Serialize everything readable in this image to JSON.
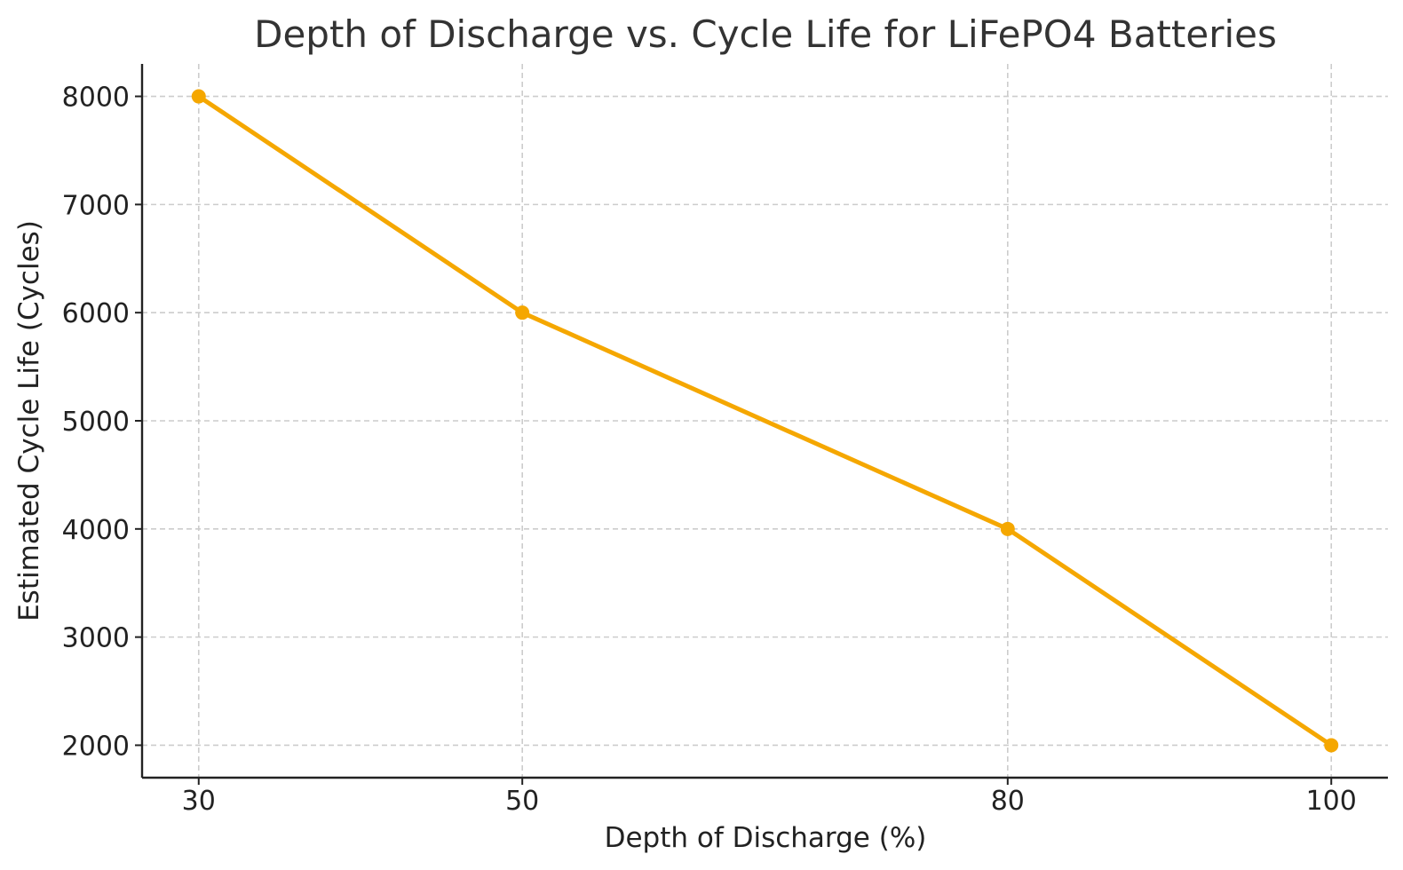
{
  "chart_data": {
    "type": "line",
    "title": "Depth of Discharge vs. Cycle Life for LiFePO4 Batteries",
    "xlabel": "Depth of Discharge (%)",
    "ylabel": "Estimated Cycle Life (Cycles)",
    "x": [
      30,
      50,
      80,
      100
    ],
    "series": [
      {
        "name": "Estimated Cycle Life",
        "values": [
          8000,
          6000,
          4000,
          2000
        ],
        "color": "#f5a700",
        "marker": "circle"
      }
    ],
    "x_ticks": [
      30,
      50,
      80,
      100
    ],
    "y_ticks": [
      2000,
      3000,
      4000,
      5000,
      6000,
      7000,
      8000
    ],
    "x_tick_labels": [
      "30",
      "50",
      "80",
      "100"
    ],
    "y_tick_labels": [
      "2000",
      "3000",
      "4000",
      "5000",
      "6000",
      "7000",
      "8000"
    ],
    "xlim": [
      26.5,
      103.5
    ],
    "ylim": [
      1700,
      8300
    ],
    "grid": true
  }
}
